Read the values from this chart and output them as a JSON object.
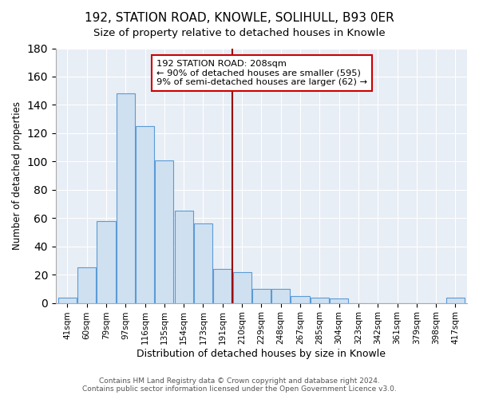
{
  "title": "192, STATION ROAD, KNOWLE, SOLIHULL, B93 0ER",
  "subtitle": "Size of property relative to detached houses in Knowle",
  "xlabel": "Distribution of detached houses by size in Knowle",
  "ylabel": "Number of detached properties",
  "bar_labels": [
    "41sqm",
    "60sqm",
    "79sqm",
    "97sqm",
    "116sqm",
    "135sqm",
    "154sqm",
    "173sqm",
    "191sqm",
    "210sqm",
    "229sqm",
    "248sqm",
    "267sqm",
    "285sqm",
    "304sqm",
    "323sqm",
    "342sqm",
    "361sqm",
    "379sqm",
    "398sqm",
    "417sqm"
  ],
  "bar_values": [
    4,
    25,
    58,
    148,
    125,
    101,
    65,
    56,
    24,
    22,
    10,
    10,
    5,
    4,
    3,
    0,
    0,
    0,
    0,
    0,
    4
  ],
  "bar_color": "#cfe0f1",
  "bar_edge_color": "#5b9bd5",
  "annotation_title": "192 STATION ROAD: 208sqm",
  "annotation_line1": "← 90% of detached houses are smaller (595)",
  "annotation_line2": "9% of semi-detached houses are larger (62) →",
  "vline_color": "#990000",
  "annotation_box_edge": "#cc0000",
  "ylim": [
    0,
    180
  ],
  "yticks": [
    0,
    20,
    40,
    60,
    80,
    100,
    120,
    140,
    160,
    180
  ],
  "background_color": "#e8eef5",
  "footer1": "Contains HM Land Registry data © Crown copyright and database right 2024.",
  "footer2": "Contains public sector information licensed under the Open Government Licence v3.0."
}
